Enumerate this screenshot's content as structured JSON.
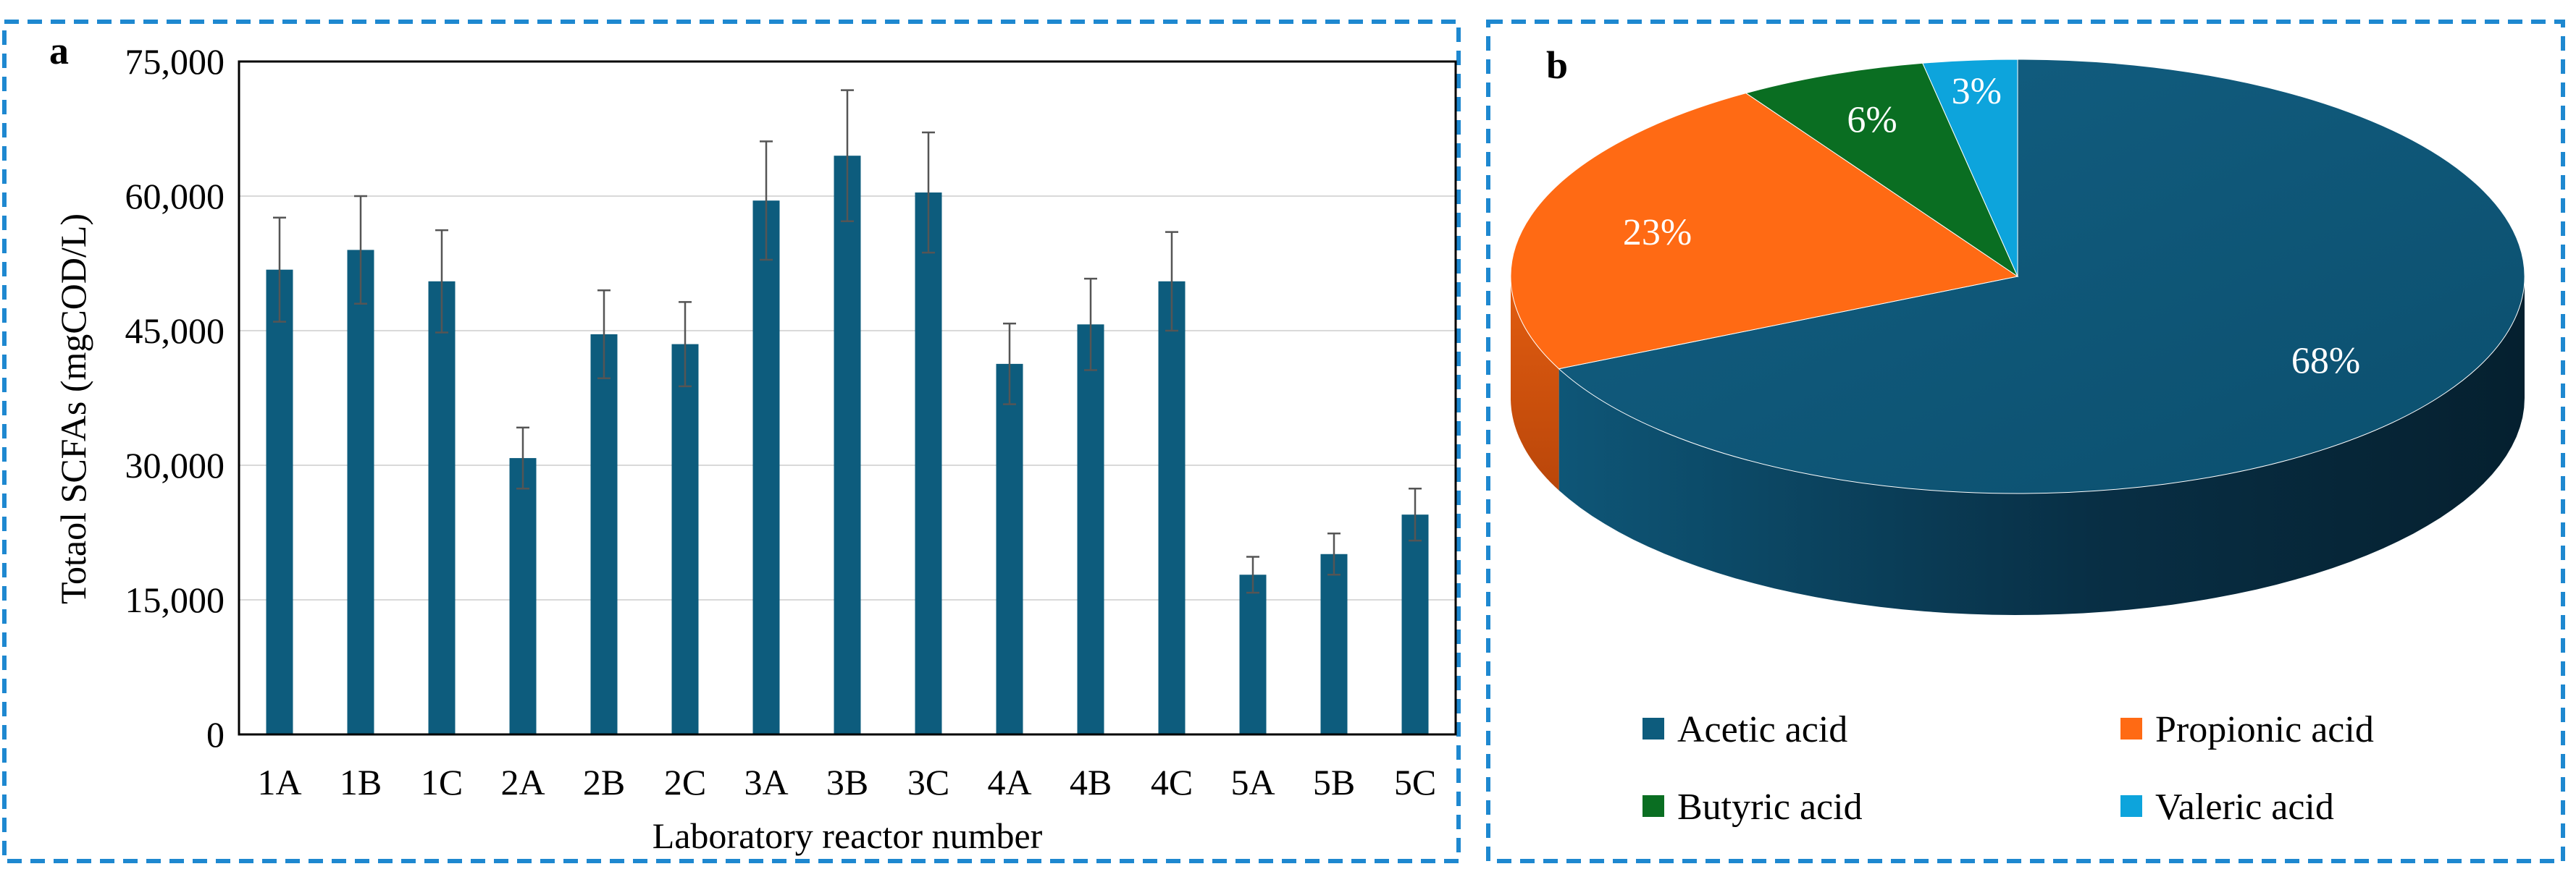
{
  "chart_data": [
    {
      "type": "bar",
      "panel_letter": "a",
      "xlabel": "Laboratory reactor number",
      "ylabel": "Totaol SCFAs (mgCOD/L)",
      "ylim": [
        0,
        75000
      ],
      "yticks": [
        0,
        15000,
        30000,
        45000,
        60000,
        75000
      ],
      "ytick_labels": [
        "0",
        "15,000",
        "30,000",
        "45,000",
        "60,000",
        "75,000"
      ],
      "grid": true,
      "categories": [
        "1A",
        "1B",
        "1C",
        "2A",
        "2B",
        "2C",
        "3A",
        "3B",
        "3C",
        "4A",
        "4B",
        "4C",
        "5A",
        "5B",
        "5C"
      ],
      "values": [
        51800,
        54000,
        50500,
        30800,
        44600,
        43500,
        59500,
        64500,
        60400,
        41300,
        45700,
        50500,
        17800,
        20100,
        24500
      ],
      "errors": [
        5800,
        6000,
        5700,
        3400,
        4900,
        4700,
        6600,
        7300,
        6700,
        4500,
        5100,
        5500,
        2000,
        2300,
        2900
      ],
      "bar_color": "#0d5c7d"
    },
    {
      "type": "pie",
      "panel_letter": "b",
      "style": "3d",
      "labels": [
        "Acetic acid",
        "Propionic acid",
        "Butyric acid",
        "Valeric acid"
      ],
      "values": [
        68,
        23,
        6,
        3
      ],
      "value_labels": [
        "68%",
        "23%",
        "6%",
        "3%"
      ],
      "colors": [
        "#0d5c7d",
        "#ff6a14",
        "#0a6e22",
        "#0da4dc"
      ],
      "legend_position": "bottom"
    }
  ]
}
